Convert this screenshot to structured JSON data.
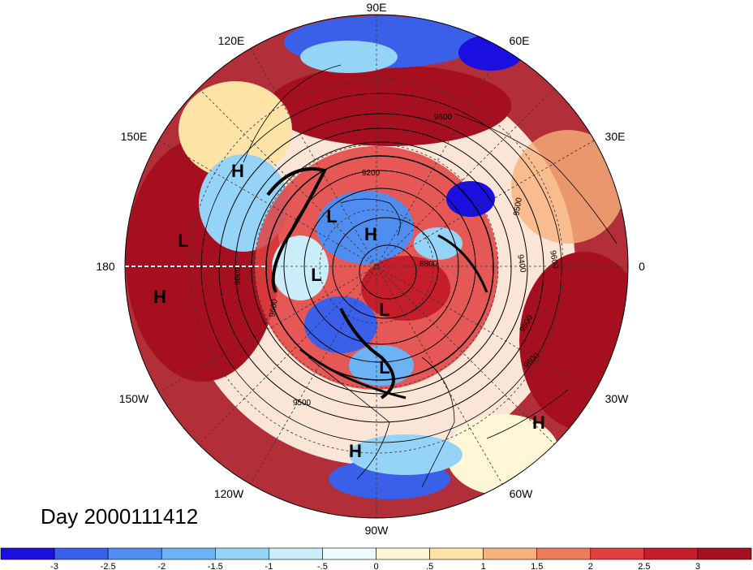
{
  "title": "Day 2000111412",
  "longitude_labels": {
    "deg_90e": "90E",
    "deg_60e": "60E",
    "deg_120e": "120E",
    "deg_150e": "150E",
    "deg_30e": "30E",
    "deg_180": "180",
    "deg_0": "0",
    "deg_150w": "150W",
    "deg_30w": "30W",
    "deg_120w": "120W",
    "deg_60w": "60W",
    "deg_90w": "90W"
  },
  "pressure_systems": [
    "H",
    "L",
    "L",
    "H",
    "L",
    "H",
    "L",
    "L",
    "H",
    "H"
  ],
  "contour_labels": [
    "9600",
    "9200",
    "9600",
    "9500",
    "8800",
    "9400",
    "9500",
    "9600",
    "9600",
    "9500",
    "9600"
  ],
  "colorbar": {
    "colors": [
      "#1a0ee0",
      "#3a5fe8",
      "#4f8ef0",
      "#6cb3f5",
      "#95d4f7",
      "#c9eefa",
      "#eefbfd",
      "#fff7d6",
      "#fde3a6",
      "#f8b17c",
      "#ee7c58",
      "#e04040",
      "#c61d2a",
      "#a50f1f"
    ],
    "tick_labels": [
      "-3",
      "-2.5",
      "-2",
      "-1.5",
      "-1",
      "-.5",
      "0",
      ".5",
      "1",
      "1.5",
      "2",
      "2.5",
      "3"
    ]
  }
}
